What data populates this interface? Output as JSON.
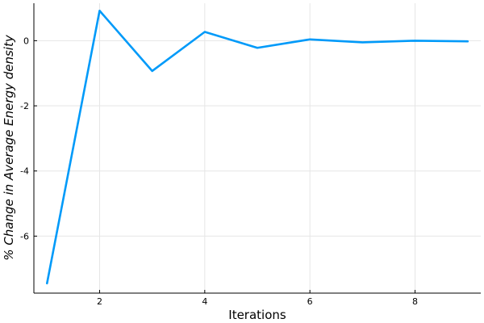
{
  "chart_data": {
    "type": "line",
    "xlabel": "Iterations",
    "ylabel": "% Change in Average Energy density",
    "xlim": [
      0.75,
      9.25
    ],
    "ylim": [
      -7.75,
      1.15
    ],
    "xticks": [
      2,
      4,
      6,
      8
    ],
    "yticks": [
      0,
      -2,
      -4,
      -6
    ],
    "xtick_labels": [
      "2",
      "4",
      "6",
      "8"
    ],
    "ytick_labels": [
      "0",
      "-2",
      "-4",
      "-6"
    ],
    "grid": true,
    "legend": "none",
    "series": [
      {
        "color": "#009AF9",
        "x": [
          1,
          2,
          3,
          4,
          5,
          6,
          7,
          8,
          9
        ],
        "y": [
          -7.45,
          0.92,
          -0.93,
          0.27,
          -0.22,
          0.04,
          -0.05,
          0.0,
          -0.02
        ]
      }
    ]
  }
}
